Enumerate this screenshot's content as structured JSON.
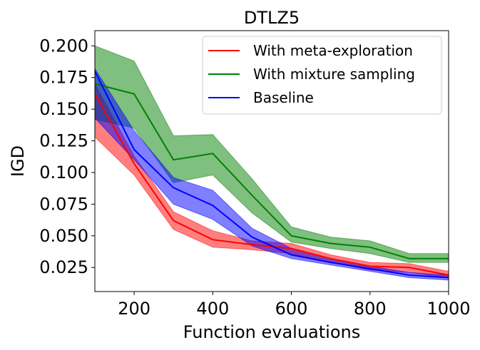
{
  "chart_data": {
    "type": "line",
    "title": "DTLZ5",
    "xlabel": "Function evaluations",
    "ylabel": "IGD",
    "xlim": [
      100,
      1000
    ],
    "ylim": [
      0.006,
      0.212
    ],
    "x_ticks": [
      200,
      400,
      600,
      800,
      1000
    ],
    "x_tick_labels": [
      "200",
      "400",
      "600",
      "800",
      "1000"
    ],
    "y_ticks": [
      0.025,
      0.05,
      0.075,
      0.1,
      0.125,
      0.15,
      0.175,
      0.2
    ],
    "y_tick_labels": [
      "0.025",
      "0.050",
      "0.075",
      "0.100",
      "0.125",
      "0.150",
      "0.175",
      "0.200"
    ],
    "legend_position": "top-right",
    "x": [
      100,
      200,
      300,
      400,
      500,
      600,
      700,
      800,
      900,
      1000
    ],
    "series": [
      {
        "name": "With meta-exploration",
        "color": "#ff0000",
        "values": [
          0.162,
          0.107,
          0.062,
          0.047,
          0.043,
          0.04,
          0.032,
          0.026,
          0.025,
          0.019
        ],
        "lower": [
          0.128,
          0.098,
          0.055,
          0.041,
          0.039,
          0.036,
          0.029,
          0.023,
          0.021,
          0.017
        ],
        "upper": [
          0.17,
          0.113,
          0.069,
          0.054,
          0.046,
          0.044,
          0.035,
          0.029,
          0.028,
          0.022
        ]
      },
      {
        "name": "With mixture sampling",
        "color": "#008000",
        "values": [
          0.17,
          0.162,
          0.11,
          0.115,
          0.082,
          0.05,
          0.044,
          0.041,
          0.032,
          0.032
        ],
        "lower": [
          0.142,
          0.135,
          0.092,
          0.098,
          0.068,
          0.045,
          0.04,
          0.036,
          0.029,
          0.029
        ],
        "upper": [
          0.2,
          0.188,
          0.129,
          0.13,
          0.095,
          0.057,
          0.049,
          0.046,
          0.036,
          0.036
        ]
      },
      {
        "name": "Baseline",
        "color": "#0000ff",
        "values": [
          0.18,
          0.118,
          0.088,
          0.074,
          0.049,
          0.035,
          0.029,
          0.024,
          0.019,
          0.017
        ],
        "lower": [
          0.143,
          0.11,
          0.075,
          0.063,
          0.042,
          0.032,
          0.027,
          0.022,
          0.017,
          0.015
        ],
        "upper": [
          0.182,
          0.133,
          0.096,
          0.086,
          0.056,
          0.04,
          0.032,
          0.026,
          0.021,
          0.019
        ]
      }
    ]
  }
}
